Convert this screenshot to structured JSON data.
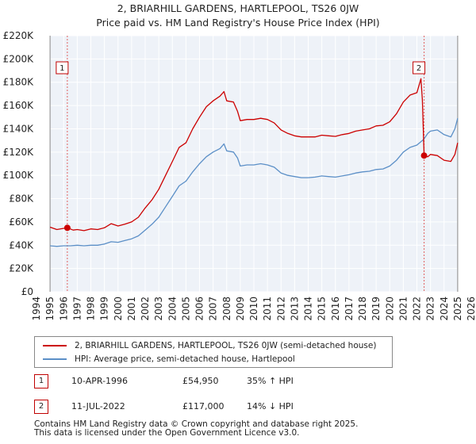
{
  "title": {
    "line1": "2, BRIARHILL GARDENS, HARTLEPOOL, TS26 0JW",
    "line2": "Price paid vs. HM Land Registry's House Price Index (HPI)"
  },
  "chart_data": {
    "type": "line",
    "title": "2, BRIARHILL GARDENS, HARTLEPOOL, TS26 0JW — Price paid vs. HM Land Registry's House Price Index (HPI)",
    "xlim": [
      1994,
      2026
    ],
    "ylim": [
      0,
      220000
    ],
    "x_ticks": [
      "1994",
      "1995",
      "1996",
      "1997",
      "1998",
      "1999",
      "2000",
      "2001",
      "2002",
      "2003",
      "2004",
      "2005",
      "2006",
      "2007",
      "2008",
      "2009",
      "2010",
      "2011",
      "2012",
      "2013",
      "2014",
      "2015",
      "2016",
      "2017",
      "2018",
      "2019",
      "2020",
      "2021",
      "2022",
      "2023",
      "2024",
      "2025",
      "2026"
    ],
    "y_ticks": [
      {
        "value": 0,
        "label": "£0"
      },
      {
        "value": 20000,
        "label": "£20K"
      },
      {
        "value": 40000,
        "label": "£40K"
      },
      {
        "value": 60000,
        "label": "£60K"
      },
      {
        "value": 80000,
        "label": "£80K"
      },
      {
        "value": 100000,
        "label": "£100K"
      },
      {
        "value": 120000,
        "label": "£120K"
      },
      {
        "value": 140000,
        "label": "£140K"
      },
      {
        "value": 160000,
        "label": "£160K"
      },
      {
        "value": 180000,
        "label": "£180K"
      },
      {
        "value": 200000,
        "label": "£200K"
      },
      {
        "value": 220000,
        "label": "£220K"
      }
    ],
    "data_range_x": [
      1995,
      2025
    ],
    "series": [
      {
        "name": "2, BRIARHILL GARDENS, HARTLEPOOL, TS26 0JW (semi-detached house)",
        "color": "#cc0000",
        "points": [
          [
            1995.0,
            55500
          ],
          [
            1995.5,
            53500
          ],
          [
            1996.0,
            54500
          ],
          [
            1996.27,
            54950
          ],
          [
            1996.7,
            53000
          ],
          [
            1997.0,
            53500
          ],
          [
            1997.5,
            52500
          ],
          [
            1998.0,
            54000
          ],
          [
            1998.5,
            53500
          ],
          [
            1999.0,
            55000
          ],
          [
            1999.5,
            58500
          ],
          [
            2000.0,
            56500
          ],
          [
            2000.5,
            58000
          ],
          [
            2001.0,
            60000
          ],
          [
            2001.5,
            64000
          ],
          [
            2002.0,
            72000
          ],
          [
            2002.5,
            79000
          ],
          [
            2003.0,
            88000
          ],
          [
            2003.5,
            100000
          ],
          [
            2004.0,
            112000
          ],
          [
            2004.5,
            124000
          ],
          [
            2005.0,
            128000
          ],
          [
            2005.5,
            140000
          ],
          [
            2006.0,
            150000
          ],
          [
            2006.5,
            159000
          ],
          [
            2007.0,
            164000
          ],
          [
            2007.5,
            168000
          ],
          [
            2007.8,
            172000
          ],
          [
            2008.0,
            164000
          ],
          [
            2008.5,
            163000
          ],
          [
            2008.8,
            155000
          ],
          [
            2009.0,
            147000
          ],
          [
            2009.5,
            148000
          ],
          [
            2010.0,
            148000
          ],
          [
            2010.5,
            149000
          ],
          [
            2011.0,
            148000
          ],
          [
            2011.5,
            145000
          ],
          [
            2012.0,
            139000
          ],
          [
            2012.5,
            136000
          ],
          [
            2013.0,
            134000
          ],
          [
            2013.5,
            133000
          ],
          [
            2014.0,
            133000
          ],
          [
            2014.5,
            133000
          ],
          [
            2015.0,
            134500
          ],
          [
            2015.5,
            134000
          ],
          [
            2016.0,
            133500
          ],
          [
            2016.5,
            135000
          ],
          [
            2017.0,
            136000
          ],
          [
            2017.5,
            138000
          ],
          [
            2018.0,
            139000
          ],
          [
            2018.5,
            140000
          ],
          [
            2019.0,
            142500
          ],
          [
            2019.5,
            143000
          ],
          [
            2020.0,
            146000
          ],
          [
            2020.5,
            153000
          ],
          [
            2021.0,
            163000
          ],
          [
            2021.5,
            169000
          ],
          [
            2022.0,
            171000
          ],
          [
            2022.3,
            183000
          ],
          [
            2022.4,
            165000
          ],
          [
            2022.53,
            117000
          ],
          [
            2022.8,
            116000
          ],
          [
            2023.0,
            118000
          ],
          [
            2023.5,
            117000
          ],
          [
            2024.0,
            113000
          ],
          [
            2024.5,
            112000
          ],
          [
            2024.8,
            118000
          ],
          [
            2025.0,
            128000
          ]
        ]
      },
      {
        "name": "HPI: Average price, semi-detached house, Hartlepool",
        "color": "#5b8fc7",
        "points": [
          [
            1995.0,
            39500
          ],
          [
            1995.5,
            39000
          ],
          [
            1996.0,
            39500
          ],
          [
            1996.5,
            39500
          ],
          [
            1997.0,
            40000
          ],
          [
            1997.5,
            39500
          ],
          [
            1998.0,
            40000
          ],
          [
            1998.5,
            40000
          ],
          [
            1999.0,
            41000
          ],
          [
            1999.5,
            43000
          ],
          [
            2000.0,
            42500
          ],
          [
            2000.5,
            44000
          ],
          [
            2001.0,
            45500
          ],
          [
            2001.5,
            48000
          ],
          [
            2002.0,
            53000
          ],
          [
            2002.5,
            58000
          ],
          [
            2003.0,
            64000
          ],
          [
            2003.5,
            73000
          ],
          [
            2004.0,
            82000
          ],
          [
            2004.5,
            91000
          ],
          [
            2005.0,
            95000
          ],
          [
            2005.5,
            103000
          ],
          [
            2006.0,
            110000
          ],
          [
            2006.5,
            116000
          ],
          [
            2007.0,
            120000
          ],
          [
            2007.5,
            123000
          ],
          [
            2007.8,
            127000
          ],
          [
            2008.0,
            121000
          ],
          [
            2008.5,
            120000
          ],
          [
            2008.8,
            115000
          ],
          [
            2009.0,
            108000
          ],
          [
            2009.5,
            109000
          ],
          [
            2010.0,
            109000
          ],
          [
            2010.5,
            110000
          ],
          [
            2011.0,
            109000
          ],
          [
            2011.5,
            107000
          ],
          [
            2012.0,
            102000
          ],
          [
            2012.5,
            100000
          ],
          [
            2013.0,
            99000
          ],
          [
            2013.5,
            98000
          ],
          [
            2014.0,
            98000
          ],
          [
            2014.5,
            98500
          ],
          [
            2015.0,
            99500
          ],
          [
            2015.5,
            99000
          ],
          [
            2016.0,
            98500
          ],
          [
            2016.5,
            99500
          ],
          [
            2017.0,
            100500
          ],
          [
            2017.5,
            102000
          ],
          [
            2018.0,
            103000
          ],
          [
            2018.5,
            103500
          ],
          [
            2019.0,
            105000
          ],
          [
            2019.5,
            105500
          ],
          [
            2020.0,
            108000
          ],
          [
            2020.5,
            113000
          ],
          [
            2021.0,
            120000
          ],
          [
            2021.5,
            124000
          ],
          [
            2022.0,
            126000
          ],
          [
            2022.5,
            131000
          ],
          [
            2022.8,
            136000
          ],
          [
            2023.0,
            138000
          ],
          [
            2023.5,
            139000
          ],
          [
            2024.0,
            135000
          ],
          [
            2024.5,
            133000
          ],
          [
            2024.8,
            140000
          ],
          [
            2025.0,
            149000
          ]
        ]
      }
    ],
    "markers": [
      {
        "label": "1",
        "x": 1996.27,
        "y": 54950
      },
      {
        "label": "2",
        "x": 2022.53,
        "y": 117000
      }
    ]
  },
  "legend": {
    "items": [
      {
        "label": "2, BRIARHILL GARDENS, HARTLEPOOL, TS26 0JW (semi-detached house)",
        "color": "#cc0000"
      },
      {
        "label": "HPI: Average price, semi-detached house, Hartlepool",
        "color": "#5b8fc7"
      }
    ]
  },
  "sales": [
    {
      "num": "1",
      "date": "10-APR-1996",
      "price": "£54,950",
      "hpi": "35% ↑ HPI"
    },
    {
      "num": "2",
      "date": "11-JUL-2022",
      "price": "£117,000",
      "hpi": "14% ↓ HPI"
    }
  ],
  "footer": {
    "line1": "Contains HM Land Registry data © Crown copyright and database right 2025.",
    "line2": "This data is licensed under the Open Government Licence v3.0."
  }
}
